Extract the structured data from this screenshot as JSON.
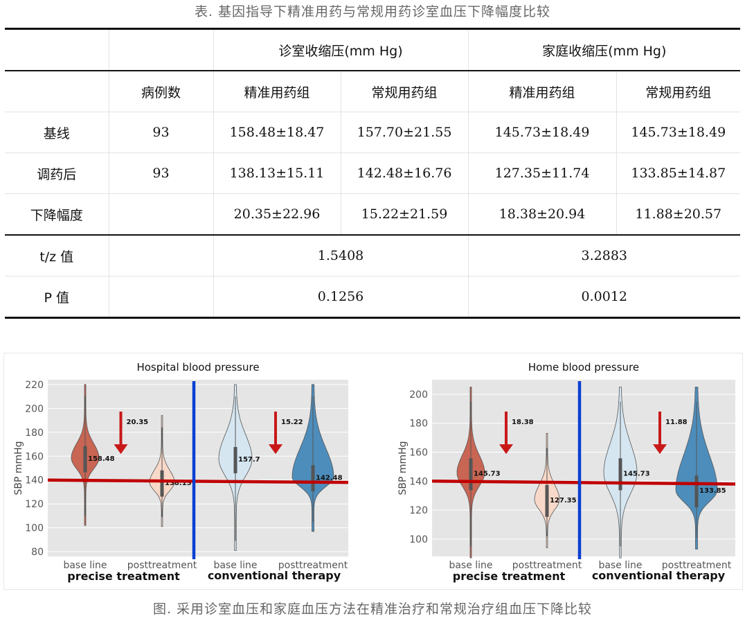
{
  "table_caption": "表. 基因指导下精准用药与常规用药诊室血压下降幅度比较",
  "table": {
    "group_headers": [
      "诊室收缩压(mm Hg)",
      "家庭收缩压(mm Hg)"
    ],
    "sub_headers": [
      "病例数",
      "精准用药组",
      "常规用药组",
      "精准用药组",
      "常规用药组"
    ],
    "rows": [
      {
        "label": "基线",
        "n": "93",
        "values": [
          "158.48±18.47",
          "157.70±21.55",
          "145.73±18.49",
          "145.73±18.49"
        ]
      },
      {
        "label": "调药后",
        "n": "93",
        "values": [
          "138.13±15.11",
          "142.48±16.76",
          "127.35±11.74",
          "133.85±14.87"
        ]
      },
      {
        "label": "下降幅度",
        "n": "",
        "values": [
          "20.35±22.96",
          "15.22±21.59",
          "18.38±20.94",
          "11.88±20.57"
        ]
      }
    ],
    "stat_rows": [
      {
        "label": "t/z 值",
        "values": [
          "1.5408",
          "3.2883"
        ]
      },
      {
        "label": "P 值",
        "values": [
          "0.1256",
          "0.0012"
        ]
      }
    ]
  },
  "chart_data": [
    {
      "type": "violin",
      "title": "Hospital blood pressure",
      "ylabel": "SBP mmHg",
      "ylim": [
        76,
        224
      ],
      "yticks": [
        80,
        100,
        120,
        140,
        160,
        180,
        200,
        220
      ],
      "categories": [
        "base line",
        "posttreatment",
        "base line",
        "posttreatment"
      ],
      "group_labels": [
        "precise treatment",
        "conventional therapy"
      ],
      "medians": [
        158.48,
        138.13,
        157.7,
        142.48
      ],
      "median_labels": [
        "158.48",
        "138.13",
        "157.7",
        "142.48"
      ],
      "ranges": [
        [
          102,
          220
        ],
        [
          101,
          194
        ],
        [
          81,
          220
        ],
        [
          97,
          220
        ]
      ],
      "drops": [
        "20.35",
        "15.22"
      ],
      "reference_line": [
        140,
        138
      ]
    },
    {
      "type": "violin",
      "title": "Home blood pressure",
      "ylabel": "SBP mmHg",
      "ylim": [
        88,
        210
      ],
      "yticks": [
        100,
        120,
        140,
        160,
        180,
        200
      ],
      "categories": [
        "base line",
        "posttreatment",
        "base line",
        "posttreatment"
      ],
      "group_labels": [
        "precise treatment",
        "conventional therapy"
      ],
      "medians": [
        145.73,
        127.35,
        145.73,
        133.85
      ],
      "median_labels": [
        "145.73",
        "127.35",
        "145.73",
        "133.85"
      ],
      "ranges": [
        [
          87,
          205
        ],
        [
          94,
          173
        ],
        [
          87,
          205
        ],
        [
          93,
          205
        ]
      ],
      "drops": [
        "18.38",
        "11.88"
      ],
      "reference_line": [
        140,
        138
      ]
    }
  ],
  "colors": {
    "precise_base": "#c86553",
    "precise_post": "#f8d8c8",
    "conv_base": "#d5e6f1",
    "conv_post": "#4d8dbb",
    "reference_line": "#c00000",
    "divider": "#0a3fd0",
    "arrow": "#c81818",
    "plot_bg": "#e5e5e5"
  },
  "figure_caption": "图. 采用诊室血压和家庭血压方法在精准治疗和常规治疗组血压下降比较"
}
